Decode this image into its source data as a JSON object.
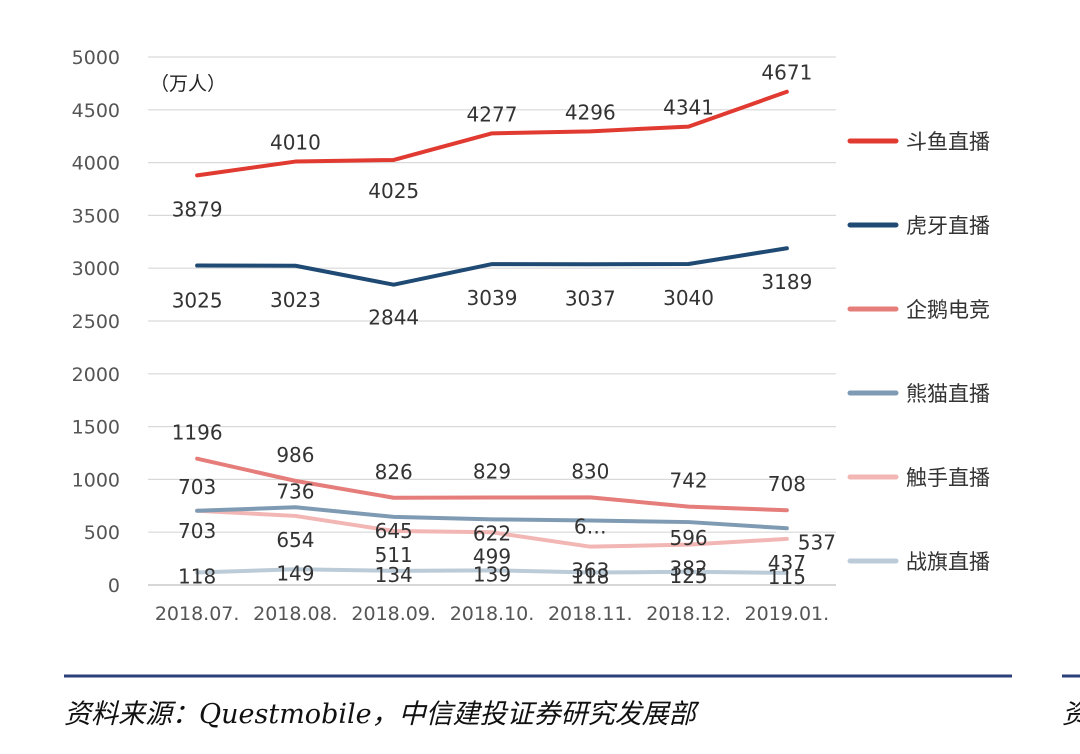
{
  "chart_data": {
    "type": "line",
    "unit": "（万人）",
    "categories": [
      "2018.07.",
      "2018.08.",
      "2018.09.",
      "2018.10.",
      "2018.11.",
      "2018.12.",
      "2019.01."
    ],
    "ylim": [
      0,
      5000
    ],
    "yticks": [
      0,
      500,
      1000,
      1500,
      2000,
      2500,
      3000,
      3500,
      4000,
      4500,
      5000
    ],
    "grid": true,
    "legend_position": "right",
    "series": [
      {
        "name": "斗鱼直播",
        "color": "#e03a31",
        "values": [
          3879,
          4010,
          4025,
          4277,
          4296,
          4341,
          4671
        ],
        "labels": [
          "3879",
          "4010",
          "4025",
          "4277",
          "4296",
          "4341",
          "4671"
        ]
      },
      {
        "name": "虎牙直播",
        "color": "#1f4a73",
        "values": [
          3025,
          3023,
          2844,
          3039,
          3037,
          3040,
          3189
        ],
        "labels": [
          "3025",
          "3023",
          "2844",
          "3039",
          "3037",
          "3040",
          "3189"
        ]
      },
      {
        "name": "企鹅电竞",
        "color": "#e57d7a",
        "values": [
          1196,
          986,
          826,
          829,
          830,
          742,
          708
        ],
        "labels": [
          "1196",
          "986",
          "826",
          "829",
          "830",
          "742",
          "708"
        ]
      },
      {
        "name": "熊猫直播",
        "color": "#7f9bb3",
        "values": [
          703,
          736,
          645,
          622,
          611,
          596,
          537
        ],
        "labels": [
          "703",
          "736",
          "645",
          "622",
          "6…",
          "596",
          "537"
        ]
      },
      {
        "name": "触手直播",
        "color": "#f2b6b4",
        "values": [
          703,
          654,
          511,
          499,
          363,
          382,
          437
        ],
        "labels": [
          "703",
          "654",
          "511",
          "499",
          "363",
          "382",
          "437"
        ]
      },
      {
        "name": "战旗直播",
        "color": "#bccbd8",
        "values": [
          118,
          149,
          134,
          139,
          118,
          125,
          115
        ],
        "labels": [
          "118",
          "149",
          "134",
          "139",
          "118",
          "125",
          "115"
        ]
      }
    ]
  },
  "footer": {
    "source": "资料来源：Questmobile，中信建投证券研究发展部",
    "edge_glyph": "资",
    "rule_color": "#2b3f7a"
  }
}
